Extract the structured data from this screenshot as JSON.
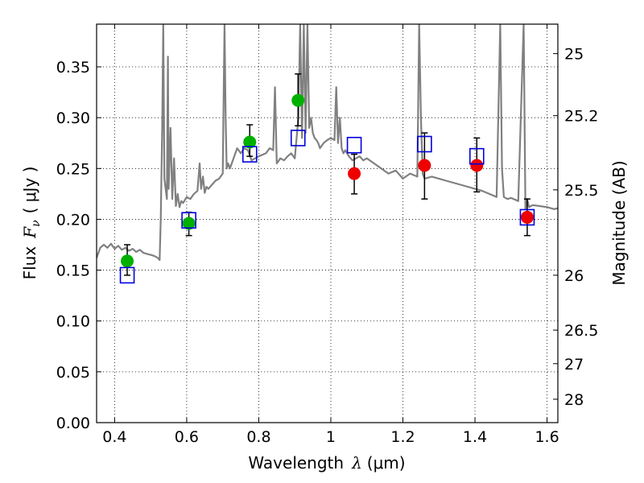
{
  "chart_data": {
    "type": "scatter",
    "xlabel_text": "Wavelength",
    "xlabel_math": "λ",
    "xlabel_unit": "(μm)",
    "ylabel_text": "Flux",
    "ylabel_math": "F",
    "ylabel_math_sub": "ν",
    "ylabel_unit": "( μJy )",
    "y2label": "Magnitude (AB)",
    "xlim": [
      0.35,
      1.63
    ],
    "ylim": [
      0.0,
      0.392
    ],
    "grid": true,
    "x_ticks": [
      0.4,
      0.6,
      0.8,
      1.0,
      1.2,
      1.4,
      1.6
    ],
    "x_tick_labels": [
      "0.4",
      "0.6",
      "0.8",
      "1",
      "1.2",
      "1.4",
      "1.6"
    ],
    "y_ticks": [
      0.0,
      0.05,
      0.1,
      0.15,
      0.2,
      0.25,
      0.3,
      0.35
    ],
    "y_tick_labels": [
      "0.00",
      "0.05",
      "0.10",
      "0.15",
      "0.20",
      "0.25",
      "0.30",
      "0.35"
    ],
    "y2_ticks": [
      {
        "label": "25",
        "flux": 0.363
      },
      {
        "label": "25.2",
        "flux": 0.302
      },
      {
        "label": "25.5",
        "flux": 0.229
      },
      {
        "label": "26",
        "flux": 0.145
      },
      {
        "label": "26.5",
        "flux": 0.091
      },
      {
        "label": "27",
        "flux": 0.058
      },
      {
        "label": "28",
        "flux": 0.023
      }
    ],
    "series": [
      {
        "marker": "circle",
        "color": "#00b000",
        "points": [
          {
            "x": 0.435,
            "y": 0.159,
            "yerr": [
              0.145,
              0.175
            ]
          },
          {
            "x": 0.606,
            "y": 0.196,
            "yerr": [
              0.184,
              0.207
            ]
          },
          {
            "x": 0.775,
            "y": 0.276,
            "yerr": [
              0.262,
              0.293
            ]
          },
          {
            "x": 0.909,
            "y": 0.317,
            "yerr": [
              0.292,
              0.343
            ]
          }
        ]
      },
      {
        "marker": "circle",
        "color": "#ee0000",
        "points": [
          {
            "x": 1.065,
            "y": 0.245,
            "yerr": [
              0.225,
              0.264
            ]
          },
          {
            "x": 1.26,
            "y": 0.253,
            "yerr": [
              0.22,
              0.285
            ]
          },
          {
            "x": 1.405,
            "y": 0.253,
            "yerr": [
              0.227,
              0.28
            ]
          },
          {
            "x": 1.545,
            "y": 0.202,
            "yerr": [
              0.184,
              0.22
            ]
          }
        ]
      },
      {
        "marker": "square",
        "color": "#0000dd",
        "points": [
          {
            "x": 0.435,
            "y": 0.145
          },
          {
            "x": 0.606,
            "y": 0.199
          },
          {
            "x": 0.775,
            "y": 0.264
          },
          {
            "x": 0.909,
            "y": 0.28
          },
          {
            "x": 1.065,
            "y": 0.273
          },
          {
            "x": 1.26,
            "y": 0.274
          },
          {
            "x": 1.405,
            "y": 0.262
          },
          {
            "x": 1.545,
            "y": 0.202
          }
        ]
      }
    ],
    "spectrum": {
      "color": "#808080",
      "x": [
        0.35,
        0.36,
        0.37,
        0.38,
        0.39,
        0.4,
        0.41,
        0.42,
        0.43,
        0.44,
        0.45,
        0.46,
        0.47,
        0.48,
        0.49,
        0.5,
        0.51,
        0.52,
        0.525,
        0.528,
        0.532,
        0.535,
        0.538,
        0.545,
        0.548,
        0.55,
        0.555,
        0.56,
        0.565,
        0.57,
        0.575,
        0.58,
        0.585,
        0.59,
        0.6,
        0.61,
        0.62,
        0.63,
        0.636,
        0.64,
        0.645,
        0.65,
        0.655,
        0.66,
        0.67,
        0.68,
        0.69,
        0.7,
        0.705,
        0.708,
        0.711,
        0.715,
        0.72,
        0.73,
        0.74,
        0.75,
        0.76,
        0.77,
        0.78,
        0.8,
        0.82,
        0.83,
        0.84,
        0.845,
        0.85,
        0.86,
        0.87,
        0.88,
        0.89,
        0.9,
        0.91,
        0.915,
        0.92,
        0.925,
        0.93,
        0.935,
        0.94,
        0.945,
        0.95,
        0.955,
        0.96,
        0.965,
        0.97,
        0.98,
        0.99,
        1.0,
        1.01,
        1.015,
        1.02,
        1.025,
        1.03,
        1.035,
        1.04,
        1.05,
        1.06,
        1.07,
        1.08,
        1.09,
        1.1,
        1.12,
        1.14,
        1.16,
        1.18,
        1.2,
        1.22,
        1.24,
        1.245,
        1.25,
        1.255,
        1.26,
        1.28,
        1.3,
        1.32,
        1.34,
        1.36,
        1.38,
        1.4,
        1.42,
        1.44,
        1.46,
        1.47,
        1.475,
        1.48,
        1.49,
        1.5,
        1.52,
        1.535,
        1.54,
        1.545,
        1.55,
        1.56,
        1.58,
        1.6,
        1.62,
        1.63
      ],
      "y": [
        0.162,
        0.172,
        0.175,
        0.172,
        0.176,
        0.171,
        0.174,
        0.17,
        0.172,
        0.169,
        0.171,
        0.168,
        0.17,
        0.167,
        0.166,
        0.165,
        0.164,
        0.162,
        0.16,
        0.2,
        0.29,
        0.392,
        0.24,
        0.22,
        0.36,
        0.23,
        0.29,
        0.22,
        0.26,
        0.213,
        0.225,
        0.212,
        0.218,
        0.216,
        0.222,
        0.22,
        0.225,
        0.228,
        0.255,
        0.23,
        0.242,
        0.226,
        0.232,
        0.23,
        0.234,
        0.238,
        0.24,
        0.245,
        0.392,
        0.3,
        0.25,
        0.255,
        0.25,
        0.26,
        0.27,
        0.265,
        0.27,
        0.268,
        0.258,
        0.262,
        0.265,
        0.27,
        0.268,
        0.33,
        0.255,
        0.26,
        0.258,
        0.262,
        0.265,
        0.26,
        0.3,
        0.392,
        0.28,
        0.392,
        0.285,
        0.392,
        0.29,
        0.3,
        0.285,
        0.28,
        0.278,
        0.275,
        0.27,
        0.275,
        0.278,
        0.28,
        0.278,
        0.33,
        0.275,
        0.3,
        0.27,
        0.265,
        0.268,
        0.262,
        0.258,
        0.26,
        0.262,
        0.258,
        0.26,
        0.255,
        0.25,
        0.245,
        0.248,
        0.24,
        0.245,
        0.242,
        0.392,
        0.3,
        0.245,
        0.24,
        0.242,
        0.24,
        0.238,
        0.236,
        0.234,
        0.232,
        0.23,
        0.228,
        0.225,
        0.222,
        0.392,
        0.25,
        0.222,
        0.22,
        0.221,
        0.218,
        0.392,
        0.21,
        0.22,
        0.212,
        0.214,
        0.213,
        0.212,
        0.21,
        0.211
      ]
    }
  }
}
